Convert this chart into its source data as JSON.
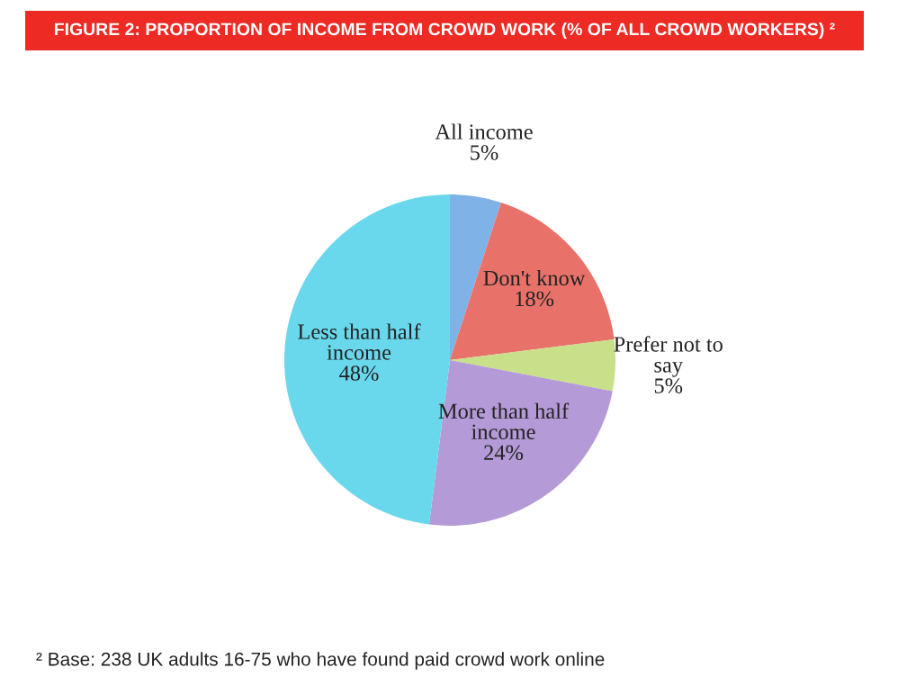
{
  "chart_data": {
    "type": "pie",
    "title": "FIGURE 2: PROPORTION OF INCOME FROM CROWD WORK (% OF ALL CROWD WORKERS) ²",
    "categories": [
      "All income",
      "Don't know",
      "Prefer not to\nsay",
      "More than half\nincome",
      "Less than half\nincome"
    ],
    "values": [
      5,
      18,
      5,
      24,
      48
    ],
    "value_labels": [
      "5%",
      "18%",
      "5%",
      "24%",
      "48%"
    ],
    "colors": [
      "#7fb2e6",
      "#e8726a",
      "#c8e08a",
      "#b49ad6",
      "#6ad8ec"
    ],
    "annotations": [
      "² Base: 238 UK adults 16-75 who have found paid crowd work online"
    ]
  }
}
